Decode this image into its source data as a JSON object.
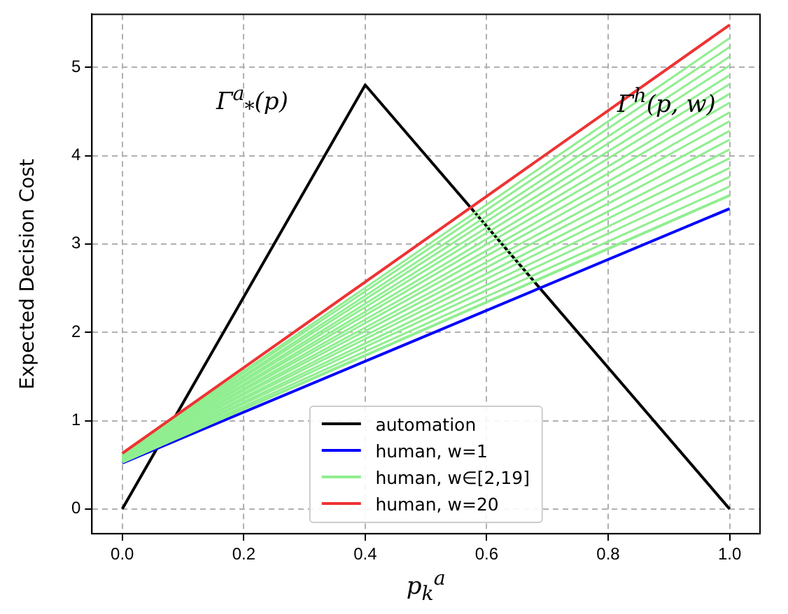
{
  "chart_data": {
    "type": "line",
    "xlabel": "p$_{k}$$^{a}$",
    "ylabel": "Expected Decision Cost",
    "xlim": [
      -0.05,
      1.05
    ],
    "ylim": [
      -0.28,
      5.6
    ],
    "xticks": [
      {
        "value": 0,
        "label": "0.0"
      },
      0.2,
      0.4,
      0.6,
      0.8,
      {
        "value": 1,
        "label": "1.0"
      }
    ],
    "yticks": [
      0,
      1,
      2,
      3,
      4,
      5
    ],
    "grid": true,
    "legend": "bottom",
    "marker": "none",
    "line_style": "solid",
    "annotations": [
      "Γ$^{a}$$_{*}$(p)",
      "Γ$^{h}$(p, w)"
    ],
    "series": [
      {
        "name": "automation",
        "color": "#000000",
        "x": [
          0,
          0.4,
          1
        ],
        "values": [
          0,
          4.8,
          0
        ]
      },
      {
        "name": "human, w=1",
        "color": "#0000ff",
        "x": [
          0,
          1
        ],
        "values": [
          0.52,
          3.4
        ]
      },
      {
        "name": "human, w∈[2,19]",
        "color": "#90ee90",
        "x": [
          0,
          1
        ],
        "values": [
          0.53,
          3.55
        ]
      },
      {
        "color": "#90ee90",
        "x": [
          0,
          1
        ],
        "values": [
          0.54,
          3.65
        ]
      },
      {
        "color": "#90ee90",
        "x": [
          0,
          1
        ],
        "values": [
          0.55,
          3.76
        ]
      },
      {
        "color": "#90ee90",
        "x": [
          0,
          1
        ],
        "values": [
          0.55,
          3.86
        ]
      },
      {
        "color": "#90ee90",
        "x": [
          0,
          1
        ],
        "values": [
          0.56,
          3.97
        ]
      },
      {
        "color": "#90ee90",
        "x": [
          0,
          1
        ],
        "values": [
          0.56,
          4.07
        ]
      },
      {
        "color": "#90ee90",
        "x": [
          0,
          1
        ],
        "values": [
          0.57,
          4.18
        ]
      },
      {
        "color": "#90ee90",
        "x": [
          0,
          1
        ],
        "values": [
          0.57,
          4.28
        ]
      },
      {
        "color": "#90ee90",
        "x": [
          0,
          1
        ],
        "values": [
          0.58,
          4.39
        ]
      },
      {
        "color": "#90ee90",
        "x": [
          0,
          1
        ],
        "values": [
          0.58,
          4.49
        ]
      },
      {
        "color": "#90ee90",
        "x": [
          0,
          1
        ],
        "values": [
          0.59,
          4.6
        ]
      },
      {
        "color": "#90ee90",
        "x": [
          0,
          1
        ],
        "values": [
          0.59,
          4.7
        ]
      },
      {
        "color": "#90ee90",
        "x": [
          0,
          1
        ],
        "values": [
          0.6,
          4.81
        ]
      },
      {
        "color": "#90ee90",
        "x": [
          0,
          1
        ],
        "values": [
          0.6,
          4.91
        ]
      },
      {
        "color": "#90ee90",
        "x": [
          0,
          1
        ],
        "values": [
          0.61,
          5.02
        ]
      },
      {
        "color": "#90ee90",
        "x": [
          0,
          1
        ],
        "values": [
          0.61,
          5.12
        ]
      },
      {
        "color": "#90ee90",
        "x": [
          0,
          1
        ],
        "values": [
          0.62,
          5.23
        ]
      },
      {
        "color": "#90ee90",
        "x": [
          0,
          1
        ],
        "values": [
          0.62,
          5.33
        ]
      },
      {
        "name": "human, w=20",
        "color": "#ee3333",
        "x": [
          0,
          1
        ],
        "values": [
          0.63,
          5.48
        ]
      }
    ]
  }
}
